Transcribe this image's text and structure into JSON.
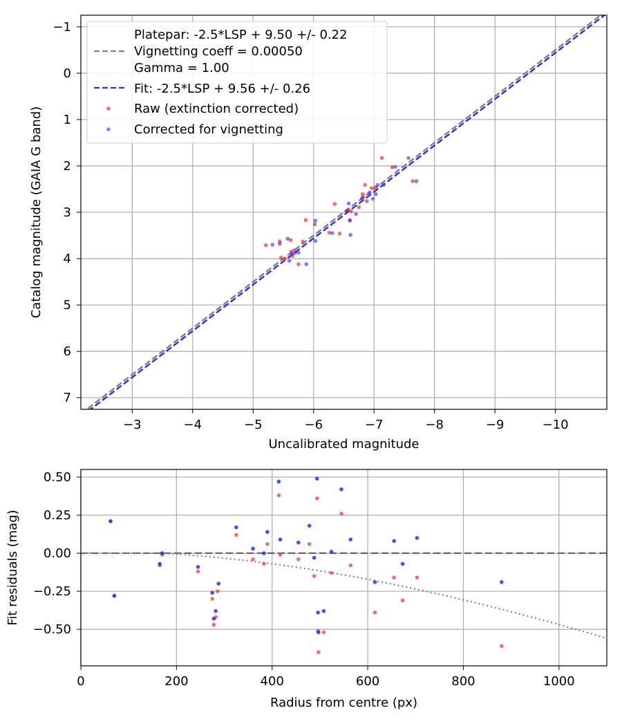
{
  "chart_data": [
    {
      "type": "scatter",
      "xlabel": "Uncalibrated magnitude",
      "ylabel": "Catalog magnitude (GAIA G band)",
      "xlim": [
        -2.15,
        -10.85
      ],
      "ylim": [
        7.25,
        -1.25
      ],
      "x_inverted": true,
      "y_inverted": true,
      "xticks": [
        -3,
        -4,
        -5,
        -6,
        -7,
        -8,
        -9,
        -10
      ],
      "xtick_labels": [
        "−3",
        "−4",
        "−5",
        "−6",
        "−7",
        "−8",
        "−9",
        "−10"
      ],
      "yticks": [
        -1,
        0,
        1,
        2,
        3,
        4,
        5,
        6,
        7
      ],
      "ytick_labels": [
        "−1",
        "0",
        "1",
        "2",
        "3",
        "4",
        "5",
        "6",
        "7"
      ],
      "grid": true,
      "legend_position": "top-left",
      "legend": {
        "platepar_lines": [
          "Platepar: -2.5*LSP + 9.50 +/- 0.22",
          "Vignetting coeff = 0.00050",
          "Gamma = 1.00"
        ],
        "fit_label": "Fit: -2.5*LSP + 9.56 +/- 0.26",
        "raw_label": "Raw (extinction corrected)",
        "corrected_label": "Corrected for vignetting"
      },
      "lines": [
        {
          "name": "platepar",
          "style": "dashed",
          "color": "#7f7f7f",
          "slope": 1,
          "intercept": 9.5
        },
        {
          "name": "fit",
          "style": "dashed",
          "color": "#2b2be8",
          "slope": 1,
          "intercept": 9.56
        }
      ],
      "series": [
        {
          "key": "raw",
          "color": "#f03030",
          "points": [
            [
              -5.21,
              3.71
            ],
            [
              -5.44,
              3.63
            ],
            [
              -5.46,
              3.98
            ],
            [
              -5.52,
              4.01
            ],
            [
              -5.62,
              3.6
            ],
            [
              -5.63,
              3.85
            ],
            [
              -5.65,
              3.94
            ],
            [
              -5.68,
              3.82
            ],
            [
              -5.75,
              4.12
            ],
            [
              -5.82,
              3.63
            ],
            [
              -5.87,
              3.17
            ],
            [
              -6.02,
              3.26
            ],
            [
              -6.26,
              3.44
            ],
            [
              -6.35,
              2.82
            ],
            [
              -6.43,
              3.46
            ],
            [
              -6.55,
              2.97
            ],
            [
              -6.57,
              2.95
            ],
            [
              -6.6,
              3.18
            ],
            [
              -6.62,
              2.98
            ],
            [
              -6.75,
              2.89
            ],
            [
              -6.81,
              2.61
            ],
            [
              -6.82,
              2.67
            ],
            [
              -6.85,
              2.41
            ],
            [
              -6.88,
              2.76
            ],
            [
              -6.96,
              2.48
            ],
            [
              -7.02,
              2.46
            ],
            [
              -7.13,
              1.83
            ],
            [
              -7.3,
              2.03
            ],
            [
              -7.64,
              2.33
            ]
          ]
        },
        {
          "key": "corrected",
          "color": "#2b2bff",
          "points": [
            [
              -5.32,
              3.7
            ],
            [
              -5.44,
              3.68
            ],
            [
              -5.57,
              3.57
            ],
            [
              -5.6,
              4.05
            ],
            [
              -5.64,
              3.9
            ],
            [
              -5.69,
              3.88
            ],
            [
              -5.75,
              3.87
            ],
            [
              -5.88,
              4.12
            ],
            [
              -6.03,
              3.18
            ],
            [
              -6.03,
              3.62
            ],
            [
              -6.31,
              3.45
            ],
            [
              -6.55,
              2.98
            ],
            [
              -6.6,
              3.17
            ],
            [
              -6.58,
              2.81
            ],
            [
              -6.61,
              3.49
            ],
            [
              -6.7,
              3.04
            ],
            [
              -6.8,
              2.7
            ],
            [
              -6.92,
              2.58
            ],
            [
              -6.98,
              2.71
            ],
            [
              -7.03,
              2.61
            ],
            [
              -7.06,
              2.41
            ],
            [
              -7.16,
              2.41
            ],
            [
              -7.35,
              2.02
            ],
            [
              -7.57,
              1.83
            ],
            [
              -7.7,
              2.33
            ]
          ]
        }
      ]
    },
    {
      "type": "scatter",
      "xlabel": "Radius from centre (px)",
      "ylabel": "Fit residuals (mag)",
      "xlim": [
        0,
        1100
      ],
      "ylim": [
        -0.74,
        0.55
      ],
      "xticks": [
        0,
        200,
        400,
        600,
        800,
        1000
      ],
      "xtick_labels": [
        "0",
        "200",
        "400",
        "600",
        "800",
        "1000"
      ],
      "yticks": [
        0.5,
        0.25,
        0.0,
        -0.25,
        -0.5
      ],
      "ytick_labels": [
        "0.50",
        "0.25",
        "0.00",
        "−0.25",
        "−0.50"
      ],
      "grid": true,
      "zero_line": {
        "style": "dashed",
        "color": "#606060"
      },
      "vignetting_curve": {
        "style": "dotted",
        "color": "#7f7f7f",
        "coeff": 0.0005,
        "offset_radius": 170
      },
      "series": [
        {
          "key": "raw",
          "color": "#f03030",
          "points": [
            [
              62,
              0.21
            ],
            [
              70,
              -0.28
            ],
            [
              165,
              -0.08
            ],
            [
              170,
              -0.01
            ],
            [
              245,
              -0.12
            ],
            [
              275,
              -0.3
            ],
            [
              278,
              -0.47
            ],
            [
              282,
              -0.42
            ],
            [
              286,
              -0.25
            ],
            [
              325,
              0.12
            ],
            [
              360,
              -0.04
            ],
            [
              383,
              -0.07
            ],
            [
              390,
              0.06
            ],
            [
              414,
              0.38
            ],
            [
              417,
              -0.01
            ],
            [
              455,
              -0.04
            ],
            [
              478,
              0.06
            ],
            [
              488,
              -0.15
            ],
            [
              494,
              0.36
            ],
            [
              496,
              -0.51
            ],
            [
              497,
              -0.65
            ],
            [
              508,
              -0.52
            ],
            [
              524,
              -0.13
            ],
            [
              545,
              0.26
            ],
            [
              564,
              -0.08
            ],
            [
              615,
              -0.39
            ],
            [
              655,
              -0.16
            ],
            [
              673,
              -0.31
            ],
            [
              703,
              -0.16
            ],
            [
              880,
              -0.61
            ]
          ]
        },
        {
          "key": "corrected",
          "color": "#2b2bff",
          "points": [
            [
              62,
              0.21
            ],
            [
              70,
              -0.28
            ],
            [
              165,
              -0.07
            ],
            [
              170,
              -0.0
            ],
            [
              245,
              -0.09
            ],
            [
              275,
              -0.26
            ],
            [
              278,
              -0.43
            ],
            [
              282,
              -0.38
            ],
            [
              288,
              -0.2
            ],
            [
              325,
              0.17
            ],
            [
              360,
              0.03
            ],
            [
              383,
              0.0
            ],
            [
              390,
              0.14
            ],
            [
              414,
              0.47
            ],
            [
              417,
              0.09
            ],
            [
              455,
              0.07
            ],
            [
              478,
              0.18
            ],
            [
              488,
              -0.03
            ],
            [
              494,
              0.49
            ],
            [
              496,
              -0.39
            ],
            [
              497,
              -0.52
            ],
            [
              508,
              -0.38
            ],
            [
              524,
              0.01
            ],
            [
              545,
              0.42
            ],
            [
              564,
              0.09
            ],
            [
              615,
              -0.19
            ],
            [
              655,
              0.08
            ],
            [
              673,
              -0.07
            ],
            [
              703,
              0.1
            ],
            [
              880,
              -0.19
            ]
          ]
        }
      ]
    }
  ]
}
